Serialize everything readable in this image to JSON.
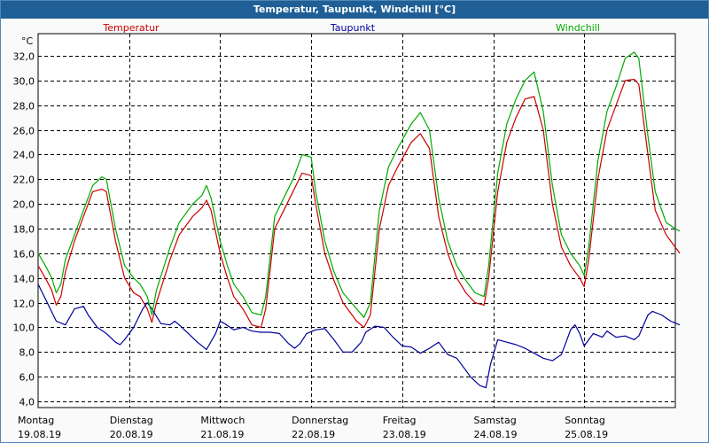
{
  "window": {
    "title": "Temperatur, Taupunkt, Windchill [°C]"
  },
  "chart_data": {
    "type": "line",
    "title": "Temperatur, Taupunkt, Windchill [°C]",
    "ylabel": "°C",
    "ylim": [
      3.5,
      33.8
    ],
    "xlim": [
      0,
      7.05
    ],
    "yticks": [
      4,
      6,
      8,
      10,
      12,
      14,
      16,
      18,
      20,
      22,
      24,
      26,
      28,
      30,
      32
    ],
    "ytick_labels": [
      "4,0",
      "6,0",
      "8,0",
      "10,0",
      "12,0",
      "14,0",
      "16,0",
      "18,0",
      "20,0",
      "22,0",
      "24,0",
      "26,0",
      "28,0",
      "30,0",
      "32,0"
    ],
    "grid": true,
    "x_categories": [
      {
        "day": "Montag",
        "date": "19.08.19"
      },
      {
        "day": "Dienstag",
        "date": "20.08.19"
      },
      {
        "day": "Mittwoch",
        "date": "21.08.19"
      },
      {
        "day": "Donnerstag",
        "date": "22.08.19"
      },
      {
        "day": "Freitag",
        "date": "23.08.19"
      },
      {
        "day": "Samstag",
        "date": "24.08.19"
      },
      {
        "day": "Sonntag",
        "date": "25.08.19"
      }
    ],
    "series": [
      {
        "name": "Temperatur",
        "color": "#cc0000",
        "points": [
          [
            0,
            15
          ],
          [
            0.08,
            14
          ],
          [
            0.15,
            13
          ],
          [
            0.2,
            11.8
          ],
          [
            0.25,
            12.5
          ],
          [
            0.3,
            14.5
          ],
          [
            0.4,
            17
          ],
          [
            0.5,
            19
          ],
          [
            0.6,
            21
          ],
          [
            0.7,
            21.2
          ],
          [
            0.75,
            21
          ],
          [
            0.85,
            17
          ],
          [
            0.95,
            14
          ],
          [
            1.05,
            12.8
          ],
          [
            1.12,
            12.5
          ],
          [
            1.2,
            11.5
          ],
          [
            1.25,
            10.4
          ],
          [
            1.3,
            12
          ],
          [
            1.45,
            15.5
          ],
          [
            1.55,
            17.5
          ],
          [
            1.7,
            19
          ],
          [
            1.8,
            19.7
          ],
          [
            1.85,
            20.3
          ],
          [
            1.9,
            19.5
          ],
          [
            2.0,
            16
          ],
          [
            2.08,
            14
          ],
          [
            2.15,
            12.5
          ],
          [
            2.25,
            11.5
          ],
          [
            2.35,
            10.2
          ],
          [
            2.45,
            10
          ],
          [
            2.5,
            11.5
          ],
          [
            2.6,
            18
          ],
          [
            2.7,
            19.5
          ],
          [
            2.8,
            21
          ],
          [
            2.9,
            22.5
          ],
          [
            3.0,
            22.3
          ],
          [
            3.05,
            20
          ],
          [
            3.15,
            16
          ],
          [
            3.25,
            13.8
          ],
          [
            3.35,
            12
          ],
          [
            3.5,
            10.5
          ],
          [
            3.58,
            10
          ],
          [
            3.65,
            11
          ],
          [
            3.75,
            18
          ],
          [
            3.85,
            21.5
          ],
          [
            3.95,
            23
          ],
          [
            4.1,
            25
          ],
          [
            4.2,
            25.7
          ],
          [
            4.3,
            24.5
          ],
          [
            4.4,
            19
          ],
          [
            4.5,
            16
          ],
          [
            4.6,
            14
          ],
          [
            4.7,
            12.8
          ],
          [
            4.8,
            12
          ],
          [
            4.9,
            11.8
          ],
          [
            4.95,
            14
          ],
          [
            5.05,
            21
          ],
          [
            5.15,
            25
          ],
          [
            5.25,
            27
          ],
          [
            5.35,
            28.5
          ],
          [
            5.45,
            28.7
          ],
          [
            5.55,
            26
          ],
          [
            5.65,
            20
          ],
          [
            5.75,
            16.5
          ],
          [
            5.85,
            15
          ],
          [
            5.95,
            14
          ],
          [
            6.0,
            13.3
          ],
          [
            6.05,
            15.5
          ],
          [
            6.15,
            22
          ],
          [
            6.25,
            26
          ],
          [
            6.35,
            28
          ],
          [
            6.45,
            30
          ],
          [
            6.55,
            30.1
          ],
          [
            6.6,
            29.7
          ],
          [
            6.7,
            24
          ],
          [
            6.78,
            19.5
          ],
          [
            6.9,
            17.5
          ],
          [
            7.0,
            16.5
          ],
          [
            7.05,
            16
          ]
        ]
      },
      {
        "name": "Taupunkt",
        "color": "#000099",
        "points": [
          [
            0,
            13.5
          ],
          [
            0.1,
            12
          ],
          [
            0.2,
            10.5
          ],
          [
            0.3,
            10.2
          ],
          [
            0.4,
            11.5
          ],
          [
            0.5,
            11.7
          ],
          [
            0.55,
            11
          ],
          [
            0.65,
            10
          ],
          [
            0.75,
            9.5
          ],
          [
            0.85,
            8.8
          ],
          [
            0.9,
            8.6
          ],
          [
            0.95,
            9
          ],
          [
            1.05,
            10
          ],
          [
            1.15,
            11.5
          ],
          [
            1.2,
            12
          ],
          [
            1.25,
            11.5
          ],
          [
            1.35,
            10.3
          ],
          [
            1.45,
            10.2
          ],
          [
            1.5,
            10.5
          ],
          [
            1.55,
            10.2
          ],
          [
            1.65,
            9.5
          ],
          [
            1.75,
            8.8
          ],
          [
            1.85,
            8.2
          ],
          [
            1.95,
            9.5
          ],
          [
            2.0,
            10.5
          ],
          [
            2.05,
            10.3
          ],
          [
            2.15,
            9.8
          ],
          [
            2.25,
            10
          ],
          [
            2.35,
            9.7
          ],
          [
            2.45,
            9.6
          ],
          [
            2.55,
            9.6
          ],
          [
            2.65,
            9.5
          ],
          [
            2.75,
            8.7
          ],
          [
            2.82,
            8.3
          ],
          [
            2.88,
            8.7
          ],
          [
            2.95,
            9.5
          ],
          [
            3.05,
            9.8
          ],
          [
            3.15,
            9.9
          ],
          [
            3.25,
            9
          ],
          [
            3.35,
            8
          ],
          [
            3.45,
            8
          ],
          [
            3.55,
            8.8
          ],
          [
            3.6,
            9.6
          ],
          [
            3.7,
            10.1
          ],
          [
            3.8,
            10
          ],
          [
            3.9,
            9.2
          ],
          [
            4.0,
            8.5
          ],
          [
            4.1,
            8.4
          ],
          [
            4.2,
            7.9
          ],
          [
            4.3,
            8.3
          ],
          [
            4.4,
            8.8
          ],
          [
            4.5,
            7.8
          ],
          [
            4.6,
            7.5
          ],
          [
            4.7,
            6.5
          ],
          [
            4.75,
            6
          ],
          [
            4.85,
            5.3
          ],
          [
            4.92,
            5.1
          ],
          [
            4.97,
            7
          ],
          [
            5.05,
            9
          ],
          [
            5.15,
            8.8
          ],
          [
            5.25,
            8.6
          ],
          [
            5.35,
            8.3
          ],
          [
            5.45,
            7.9
          ],
          [
            5.55,
            7.5
          ],
          [
            5.65,
            7.3
          ],
          [
            5.75,
            7.8
          ],
          [
            5.8,
            8.8
          ],
          [
            5.85,
            9.8
          ],
          [
            5.9,
            10.2
          ],
          [
            5.95,
            9.5
          ],
          [
            6.0,
            8.5
          ],
          [
            6.05,
            9
          ],
          [
            6.1,
            9.5
          ],
          [
            6.2,
            9.2
          ],
          [
            6.25,
            9.7
          ],
          [
            6.35,
            9.2
          ],
          [
            6.45,
            9.3
          ],
          [
            6.55,
            9
          ],
          [
            6.6,
            9.3
          ],
          [
            6.7,
            11
          ],
          [
            6.75,
            11.3
          ],
          [
            6.85,
            11
          ],
          [
            6.95,
            10.5
          ],
          [
            7.05,
            10.2
          ]
        ]
      },
      {
        "name": "Windchill",
        "color": "#00aa00",
        "points": [
          [
            0,
            16
          ],
          [
            0.08,
            15
          ],
          [
            0.15,
            14
          ],
          [
            0.2,
            12.8
          ],
          [
            0.25,
            13.5
          ],
          [
            0.3,
            15.5
          ],
          [
            0.4,
            17.5
          ],
          [
            0.5,
            19.5
          ],
          [
            0.6,
            21.5
          ],
          [
            0.7,
            22.2
          ],
          [
            0.75,
            22
          ],
          [
            0.85,
            18
          ],
          [
            0.95,
            15
          ],
          [
            1.05,
            14
          ],
          [
            1.12,
            13.5
          ],
          [
            1.2,
            12.5
          ],
          [
            1.25,
            11
          ],
          [
            1.3,
            13
          ],
          [
            1.45,
            16.5
          ],
          [
            1.55,
            18.5
          ],
          [
            1.7,
            20
          ],
          [
            1.8,
            20.7
          ],
          [
            1.85,
            21.5
          ],
          [
            1.9,
            20.5
          ],
          [
            2.0,
            17
          ],
          [
            2.08,
            15
          ],
          [
            2.15,
            13.5
          ],
          [
            2.25,
            12.5
          ],
          [
            2.35,
            11.2
          ],
          [
            2.45,
            11
          ],
          [
            2.5,
            12.5
          ],
          [
            2.6,
            19
          ],
          [
            2.7,
            20.5
          ],
          [
            2.8,
            22
          ],
          [
            2.9,
            24
          ],
          [
            3.0,
            23.8
          ],
          [
            3.05,
            21
          ],
          [
            3.15,
            17
          ],
          [
            3.25,
            14.5
          ],
          [
            3.35,
            12.8
          ],
          [
            3.5,
            11.5
          ],
          [
            3.58,
            10.8
          ],
          [
            3.65,
            12
          ],
          [
            3.75,
            19.5
          ],
          [
            3.85,
            23
          ],
          [
            3.95,
            24.5
          ],
          [
            4.1,
            26.5
          ],
          [
            4.2,
            27.4
          ],
          [
            4.3,
            26
          ],
          [
            4.4,
            20.5
          ],
          [
            4.5,
            17
          ],
          [
            4.6,
            15
          ],
          [
            4.7,
            13.8
          ],
          [
            4.8,
            12.8
          ],
          [
            4.9,
            12.5
          ],
          [
            4.95,
            15
          ],
          [
            5.05,
            22.5
          ],
          [
            5.15,
            26.5
          ],
          [
            5.25,
            28.5
          ],
          [
            5.35,
            30
          ],
          [
            5.45,
            30.7
          ],
          [
            5.55,
            27.5
          ],
          [
            5.65,
            21.5
          ],
          [
            5.75,
            17.5
          ],
          [
            5.85,
            16
          ],
          [
            5.95,
            15
          ],
          [
            6.0,
            14.2
          ],
          [
            6.05,
            16.5
          ],
          [
            6.15,
            23.5
          ],
          [
            6.25,
            27.5
          ],
          [
            6.35,
            29.5
          ],
          [
            6.45,
            31.8
          ],
          [
            6.55,
            32.3
          ],
          [
            6.6,
            31.8
          ],
          [
            6.7,
            25.5
          ],
          [
            6.78,
            21
          ],
          [
            6.9,
            18.5
          ],
          [
            7.0,
            18
          ],
          [
            7.05,
            17.8
          ]
        ]
      }
    ],
    "legend": [
      "Temperatur",
      "Taupunkt",
      "Windchill"
    ]
  }
}
